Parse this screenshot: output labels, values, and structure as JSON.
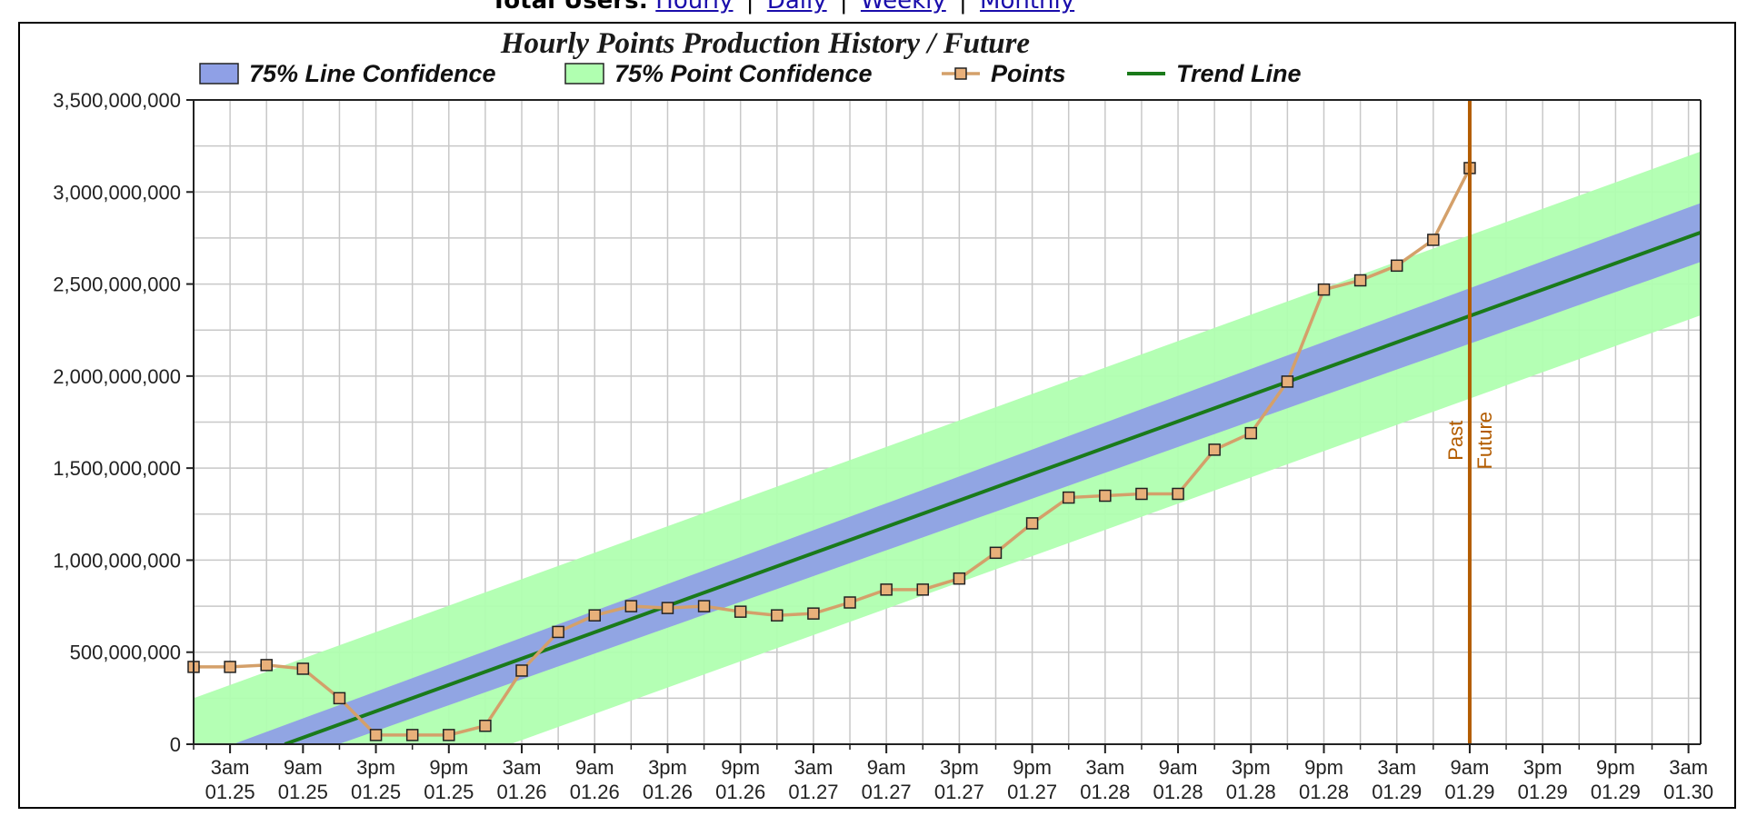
{
  "header": {
    "label": "Total Users:",
    "links": [
      {
        "label": "Hourly"
      },
      {
        "label": "Daily"
      },
      {
        "label": "Weekly"
      },
      {
        "label": "Monthly"
      }
    ],
    "separator": "|"
  },
  "chart_data": {
    "type": "line",
    "title": "Hourly Points Production History / Future",
    "xlabel": "",
    "ylabel": "",
    "ylim": [
      0,
      3500000000
    ],
    "yticks": [
      0,
      500000000,
      1000000000,
      1500000000,
      2000000000,
      2500000000,
      3000000000,
      3500000000
    ],
    "ytick_labels": [
      "0",
      "500,000,000",
      "1,000,000,000",
      "1,500,000,000",
      "2,000,000,000",
      "2,500,000,000",
      "3,000,000,000",
      "3,500,000,000"
    ],
    "x_unit": "hours",
    "xlim": [
      0,
      124
    ],
    "xticks": [
      3,
      9,
      15,
      21,
      27,
      33,
      39,
      45,
      51,
      57,
      63,
      69,
      75,
      81,
      87,
      93,
      99,
      105,
      111,
      117,
      123
    ],
    "xtick_labels": [
      [
        "3am",
        "01.25"
      ],
      [
        "9am",
        "01.25"
      ],
      [
        "3pm",
        "01.25"
      ],
      [
        "9pm",
        "01.25"
      ],
      [
        "3am",
        "01.26"
      ],
      [
        "9am",
        "01.26"
      ],
      [
        "3pm",
        "01.26"
      ],
      [
        "9pm",
        "01.26"
      ],
      [
        "3am",
        "01.27"
      ],
      [
        "9am",
        "01.27"
      ],
      [
        "3pm",
        "01.27"
      ],
      [
        "9pm",
        "01.27"
      ],
      [
        "3am",
        "01.28"
      ],
      [
        "9am",
        "01.28"
      ],
      [
        "3pm",
        "01.28"
      ],
      [
        "9pm",
        "01.28"
      ],
      [
        "3am",
        "01.29"
      ],
      [
        "9am",
        "01.29"
      ],
      [
        "3pm",
        "01.29"
      ],
      [
        "9pm",
        "01.29"
      ],
      [
        "3am",
        "01.30"
      ]
    ],
    "grid": true,
    "legend_position": "top",
    "legend": [
      {
        "name": "75% Line Confidence",
        "kind": "band",
        "color": "#8fa0e6"
      },
      {
        "name": "75% Point Confidence",
        "kind": "band",
        "color": "#b0ffb0"
      },
      {
        "name": "Points",
        "kind": "line-marker",
        "color": "#d4a06a"
      },
      {
        "name": "Trend Line",
        "kind": "line",
        "color": "#1a7a1a"
      }
    ],
    "series": [
      {
        "name": "Points",
        "x": [
          0,
          3,
          6,
          9,
          12,
          15,
          18,
          21,
          24,
          27,
          30,
          33,
          36,
          39,
          42,
          45,
          48,
          51,
          54,
          57,
          60,
          63,
          66,
          69,
          72,
          75,
          78,
          81,
          84,
          87,
          90,
          93,
          96,
          99,
          102,
          105
        ],
        "values": [
          420000000,
          420000000,
          430000000,
          410000000,
          250000000,
          50000000,
          50000000,
          50000000,
          100000000,
          400000000,
          610000000,
          700000000,
          750000000,
          740000000,
          750000000,
          720000000,
          700000000,
          710000000,
          770000000,
          840000000,
          840000000,
          900000000,
          1040000000,
          1200000000,
          1340000000,
          1350000000,
          1360000000,
          1360000000,
          1600000000,
          1690000000,
          1970000000,
          2470000000,
          2520000000,
          2600000000,
          2740000000,
          3130000000
        ]
      },
      {
        "name": "Trend Line",
        "x": [
          7.5,
          124
        ],
        "values": [
          0,
          2780000000
        ]
      },
      {
        "name": "75% Line Confidence",
        "x": [
          0,
          124
        ],
        "upper": [
          0,
          2940000000
        ],
        "lower": [
          0,
          2620000000
        ],
        "band_center_at_x0": -180000000,
        "band_halfwidth": [
          100000000,
          160000000
        ]
      },
      {
        "name": "75% Point Confidence",
        "x": [
          0,
          124
        ],
        "upper": [
          250000000,
          3220000000
        ],
        "lower": [
          -620000000,
          2330000000
        ]
      }
    ],
    "annotations": [
      {
        "x": 105,
        "label_left": "Past",
        "label_right": "Future",
        "color": "#b35c00"
      }
    ]
  }
}
